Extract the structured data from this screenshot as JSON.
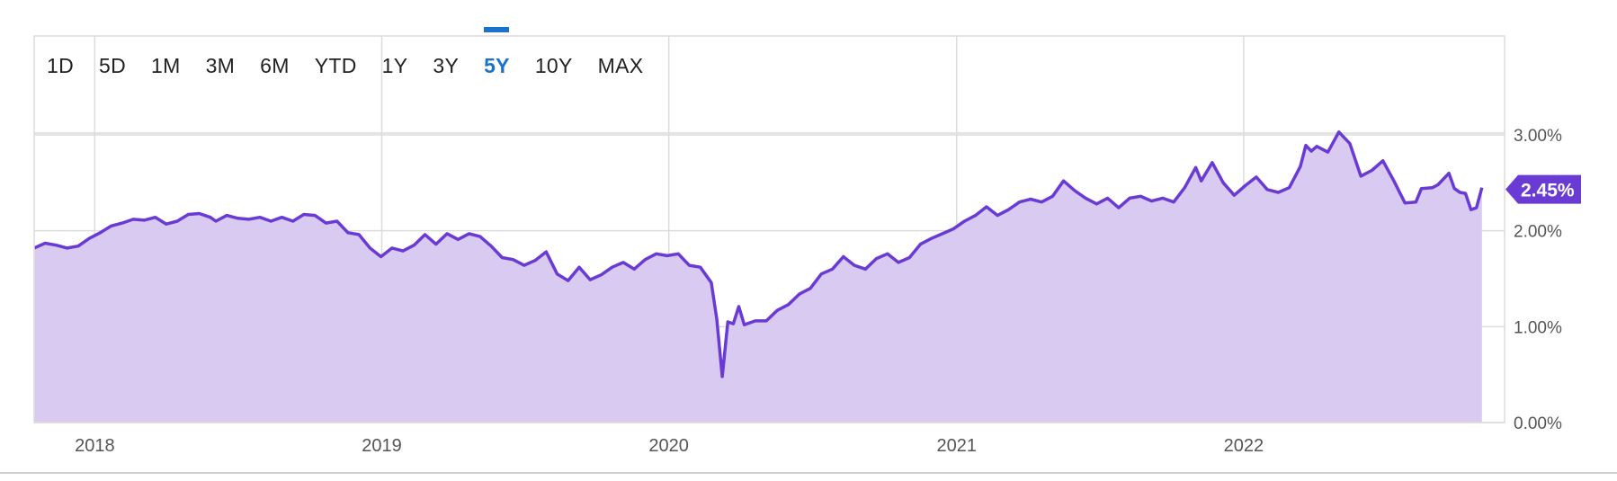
{
  "range_buttons": [
    "1D",
    "5D",
    "1M",
    "3M",
    "6M",
    "YTD",
    "1Y",
    "3Y",
    "5Y",
    "10Y",
    "MAX"
  ],
  "active_range": "5Y",
  "current_value_label": "2.45%",
  "colors": {
    "line": "#6a3bd4",
    "fill": "#d9caf1",
    "active_tab": "#1a73c9",
    "grid": "#dcdcdc",
    "tag_bg": "#6a3bd4"
  },
  "chart_data": {
    "type": "area",
    "title": "",
    "xlabel": "",
    "ylabel": "",
    "x_tick_labels": [
      "2018",
      "2019",
      "2020",
      "2021",
      "2022"
    ],
    "y_tick_labels": [
      "0.00%",
      "1.00%",
      "2.00%",
      "3.00%"
    ],
    "ylim": [
      0,
      3.0
    ],
    "xlim": [
      "2017-10-16",
      "2022-09-12"
    ],
    "grid": true,
    "series": [
      {
        "points": [
          [
            "2017-10-16",
            1.82
          ],
          [
            "2017-10-30",
            1.87
          ],
          [
            "2017-11-13",
            1.85
          ],
          [
            "2017-11-27",
            1.82
          ],
          [
            "2017-12-11",
            1.84
          ],
          [
            "2017-12-25",
            1.92
          ],
          [
            "2018-01-08",
            1.98
          ],
          [
            "2018-01-22",
            2.05
          ],
          [
            "2018-02-05",
            2.08
          ],
          [
            "2018-02-19",
            2.12
          ],
          [
            "2018-03-05",
            2.11
          ],
          [
            "2018-03-19",
            2.14
          ],
          [
            "2018-04-02",
            2.07
          ],
          [
            "2018-04-16",
            2.1
          ],
          [
            "2018-04-30",
            2.17
          ],
          [
            "2018-05-14",
            2.18
          ],
          [
            "2018-05-28",
            2.14
          ],
          [
            "2018-06-04",
            2.1
          ],
          [
            "2018-06-18",
            2.16
          ],
          [
            "2018-07-02",
            2.13
          ],
          [
            "2018-07-16",
            2.12
          ],
          [
            "2018-07-30",
            2.14
          ],
          [
            "2018-08-13",
            2.1
          ],
          [
            "2018-08-27",
            2.14
          ],
          [
            "2018-09-10",
            2.1
          ],
          [
            "2018-09-24",
            2.17
          ],
          [
            "2018-10-08",
            2.16
          ],
          [
            "2018-10-22",
            2.08
          ],
          [
            "2018-11-05",
            2.1
          ],
          [
            "2018-11-19",
            1.98
          ],
          [
            "2018-12-03",
            1.96
          ],
          [
            "2018-12-17",
            1.82
          ],
          [
            "2018-12-31",
            1.73
          ],
          [
            "2019-01-14",
            1.82
          ],
          [
            "2019-01-28",
            1.79
          ],
          [
            "2019-02-11",
            1.85
          ],
          [
            "2019-02-25",
            1.96
          ],
          [
            "2019-03-11",
            1.86
          ],
          [
            "2019-03-25",
            1.97
          ],
          [
            "2019-04-08",
            1.91
          ],
          [
            "2019-04-22",
            1.97
          ],
          [
            "2019-05-06",
            1.94
          ],
          [
            "2019-05-20",
            1.84
          ],
          [
            "2019-06-03",
            1.72
          ],
          [
            "2019-06-17",
            1.7
          ],
          [
            "2019-07-01",
            1.64
          ],
          [
            "2019-07-15",
            1.69
          ],
          [
            "2019-07-29",
            1.78
          ],
          [
            "2019-08-12",
            1.55
          ],
          [
            "2019-08-26",
            1.48
          ],
          [
            "2019-09-09",
            1.62
          ],
          [
            "2019-09-23",
            1.49
          ],
          [
            "2019-10-07",
            1.54
          ],
          [
            "2019-10-21",
            1.62
          ],
          [
            "2019-11-04",
            1.67
          ],
          [
            "2019-11-18",
            1.6
          ],
          [
            "2019-12-02",
            1.7
          ],
          [
            "2019-12-16",
            1.76
          ],
          [
            "2019-12-30",
            1.74
          ],
          [
            "2020-01-13",
            1.76
          ],
          [
            "2020-01-27",
            1.64
          ],
          [
            "2020-02-10",
            1.62
          ],
          [
            "2020-02-24",
            1.46
          ],
          [
            "2020-03-02",
            1.08
          ],
          [
            "2020-03-09",
            0.48
          ],
          [
            "2020-03-16",
            1.05
          ],
          [
            "2020-03-23",
            1.03
          ],
          [
            "2020-03-30",
            1.21
          ],
          [
            "2020-04-06",
            1.02
          ],
          [
            "2020-04-20",
            1.06
          ],
          [
            "2020-05-04",
            1.06
          ],
          [
            "2020-05-18",
            1.17
          ],
          [
            "2020-06-01",
            1.23
          ],
          [
            "2020-06-15",
            1.34
          ],
          [
            "2020-06-29",
            1.4
          ],
          [
            "2020-07-13",
            1.55
          ],
          [
            "2020-07-27",
            1.6
          ],
          [
            "2020-08-10",
            1.73
          ],
          [
            "2020-08-24",
            1.64
          ],
          [
            "2020-09-07",
            1.6
          ],
          [
            "2020-09-21",
            1.71
          ],
          [
            "2020-10-05",
            1.76
          ],
          [
            "2020-10-19",
            1.67
          ],
          [
            "2020-11-02",
            1.72
          ],
          [
            "2020-11-16",
            1.86
          ],
          [
            "2020-11-30",
            1.92
          ],
          [
            "2020-12-14",
            1.97
          ],
          [
            "2020-12-28",
            2.02
          ],
          [
            "2021-01-11",
            2.1
          ],
          [
            "2021-01-25",
            2.16
          ],
          [
            "2021-02-08",
            2.25
          ],
          [
            "2021-02-22",
            2.16
          ],
          [
            "2021-03-08",
            2.22
          ],
          [
            "2021-03-22",
            2.3
          ],
          [
            "2021-04-05",
            2.33
          ],
          [
            "2021-04-19",
            2.3
          ],
          [
            "2021-05-03",
            2.36
          ],
          [
            "2021-05-17",
            2.52
          ],
          [
            "2021-05-31",
            2.42
          ],
          [
            "2021-06-14",
            2.34
          ],
          [
            "2021-06-28",
            2.28
          ],
          [
            "2021-07-12",
            2.34
          ],
          [
            "2021-07-26",
            2.24
          ],
          [
            "2021-08-09",
            2.34
          ],
          [
            "2021-08-23",
            2.36
          ],
          [
            "2021-09-06",
            2.31
          ],
          [
            "2021-09-20",
            2.34
          ],
          [
            "2021-10-04",
            2.3
          ],
          [
            "2021-10-18",
            2.45
          ],
          [
            "2021-11-01",
            2.66
          ],
          [
            "2021-11-08",
            2.52
          ],
          [
            "2021-11-22",
            2.71
          ],
          [
            "2021-12-06",
            2.5
          ],
          [
            "2021-12-20",
            2.37
          ],
          [
            "2022-01-03",
            2.47
          ],
          [
            "2022-01-17",
            2.56
          ],
          [
            "2022-01-31",
            2.43
          ],
          [
            "2022-02-14",
            2.4
          ],
          [
            "2022-02-28",
            2.45
          ],
          [
            "2022-03-14",
            2.67
          ],
          [
            "2022-03-21",
            2.89
          ],
          [
            "2022-03-28",
            2.83
          ],
          [
            "2022-04-04",
            2.88
          ],
          [
            "2022-04-18",
            2.82
          ],
          [
            "2022-05-02",
            3.03
          ],
          [
            "2022-05-16",
            2.91
          ],
          [
            "2022-05-30",
            2.57
          ],
          [
            "2022-06-13",
            2.63
          ],
          [
            "2022-06-27",
            2.73
          ],
          [
            "2022-07-11",
            2.52
          ],
          [
            "2022-07-25",
            2.29
          ],
          [
            "2022-08-08",
            2.3
          ],
          [
            "2022-08-15",
            2.44
          ],
          [
            "2022-08-29",
            2.45
          ],
          [
            "2022-09-05",
            2.48
          ],
          [
            "2022-09-19",
            2.6
          ],
          [
            "2022-09-26",
            2.44
          ],
          [
            "2022-10-03",
            2.4
          ],
          [
            "2022-10-10",
            2.39
          ],
          [
            "2022-10-17",
            2.22
          ],
          [
            "2022-10-24",
            2.24
          ],
          [
            "2022-10-31",
            2.45
          ]
        ]
      }
    ]
  }
}
